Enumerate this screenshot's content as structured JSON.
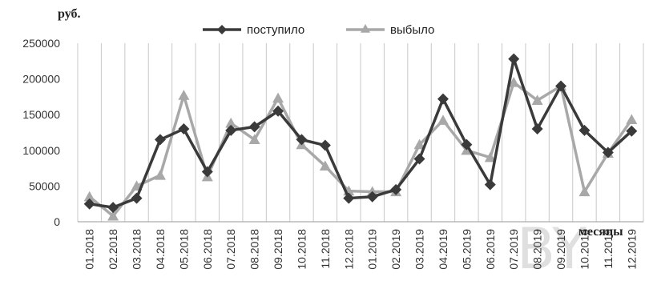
{
  "chart_data": {
    "type": "line",
    "ylabel": "руб.",
    "xlabel": "месяцы",
    "ylim": [
      0,
      250000
    ],
    "yticks": [
      0,
      50000,
      100000,
      150000,
      200000,
      250000
    ],
    "grid": "vertical",
    "legend": "top-center",
    "categories": [
      "01.2018",
      "02.2018",
      "03.2018",
      "04.2018",
      "05.2018",
      "06.2018",
      "07.2018",
      "08.2018",
      "09.2018",
      "10.2018",
      "11.2018",
      "12.2018",
      "01.2019",
      "02.2019",
      "03.2019",
      "04.2019",
      "05.2019",
      "06.2019",
      "07.2019",
      "08.2019",
      "09.2019",
      "10.2019",
      "11.2019",
      "12.2019"
    ],
    "series": [
      {
        "name": "поступило",
        "color": "#3a3a3a",
        "marker": "diamond",
        "values": [
          25000,
          20000,
          33000,
          115000,
          130000,
          70000,
          128000,
          133000,
          155000,
          115000,
          107000,
          33000,
          35000,
          45000,
          88000,
          172000,
          108000,
          52000,
          228000,
          130000,
          190000,
          128000,
          97000,
          127000
        ]
      },
      {
        "name": "выбыло",
        "color": "#a8a8a8",
        "marker": "triangle",
        "values": [
          35000,
          8000,
          50000,
          65000,
          177000,
          63000,
          138000,
          115000,
          173000,
          108000,
          78000,
          43000,
          42000,
          42000,
          108000,
          142000,
          100000,
          90000,
          195000,
          170000,
          190000,
          42000,
          96000,
          143000
        ]
      }
    ]
  }
}
